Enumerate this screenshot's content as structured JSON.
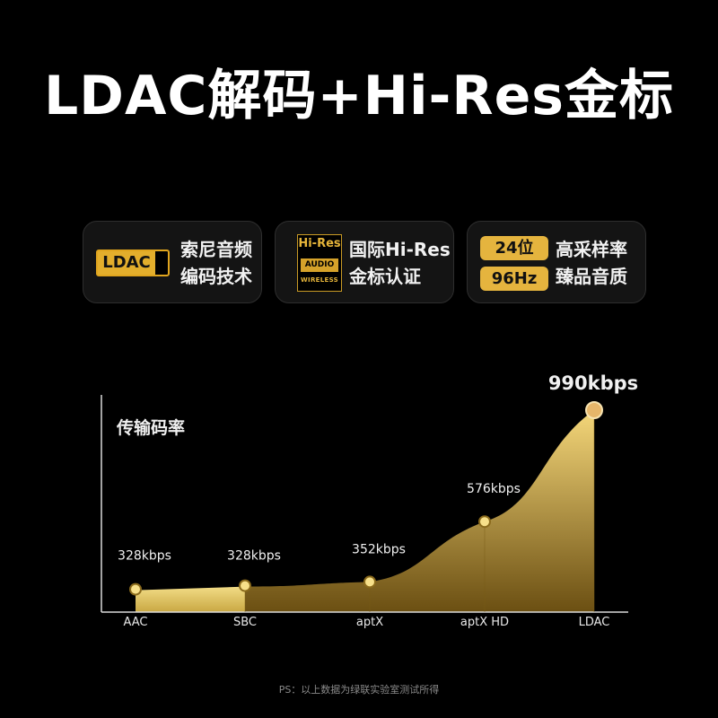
{
  "title": "LDAC解码+Hi-Res金标",
  "features": [
    {
      "badge": "LDAC",
      "line1": "索尼音频",
      "line2": "编码技术"
    },
    {
      "logo_top": "Hi-Res",
      "logo_mid": "AUDIO",
      "logo_bottom": "WIRELESS",
      "line1": "国际Hi-Res",
      "line2": "金标认证"
    },
    {
      "pill1": "24位",
      "pill2": "96Hz",
      "line1": "高采样率",
      "line2": "臻品音质"
    }
  ],
  "chart_data": {
    "type": "area",
    "title": "传输码率",
    "categories": [
      "AAC",
      "SBC",
      "aptX",
      "aptX HD",
      "LDAC"
    ],
    "values": [
      328,
      328,
      352,
      576,
      990
    ],
    "labels": [
      "328kbps",
      "328kbps",
      "352kbps",
      "576kbps",
      "990kbps"
    ],
    "unit": "kbps",
    "colors": {
      "fill_top": "#f5d77a",
      "fill_bottom": "#6b4f12",
      "marker": "#f7e08a",
      "axis": "#d9d9d9"
    }
  },
  "footnote": "PS：以上数据为绿联实验室测试所得"
}
